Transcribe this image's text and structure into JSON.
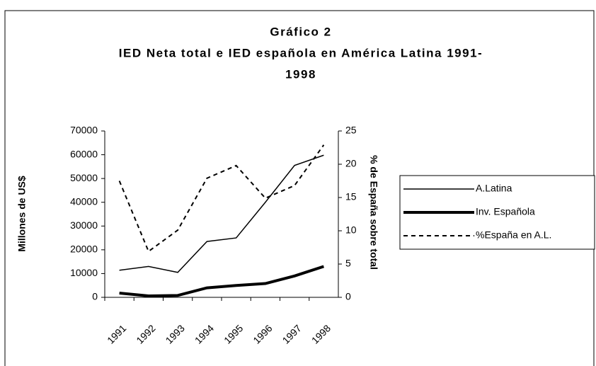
{
  "chart_data": {
    "type": "line",
    "title": [
      "Gráfico 2",
      "IED Neta total e IED española en América Latina 1991-",
      "1998"
    ],
    "y_label": "Millones de US$",
    "y2_label": "% de España sobre total",
    "categories": [
      "1991",
      "1992",
      "1993",
      "1994",
      "1995",
      "1996",
      "1997",
      "1998"
    ],
    "ylim": [
      0,
      70000
    ],
    "yticks": [
      0,
      10000,
      20000,
      30000,
      40000,
      50000,
      60000,
      70000
    ],
    "y2lim": [
      0,
      25
    ],
    "y2ticks": [
      0,
      5,
      10,
      15,
      20,
      25
    ],
    "legend": "right",
    "series": [
      {
        "name": "A.Latina",
        "color": "#000000",
        "width": 1.5,
        "dash": "solid",
        "values": [
          11400,
          13000,
          10500,
          23500,
          25000,
          40000,
          55500,
          59800
        ]
      },
      {
        "name": "Inv. Española",
        "color": "#000000",
        "width": 4,
        "dash": "solid",
        "values": [
          1800,
          600,
          800,
          4000,
          5000,
          5800,
          9000,
          13000
        ]
      },
      {
        "name": "%España en A.L.",
        "color": "#000000",
        "width": 2,
        "dash": "dashed",
        "axis": "y2",
        "values": [
          17.5,
          6.9,
          10.1,
          17.9,
          19.8,
          14.9,
          16.8,
          22.9
        ]
      }
    ]
  }
}
